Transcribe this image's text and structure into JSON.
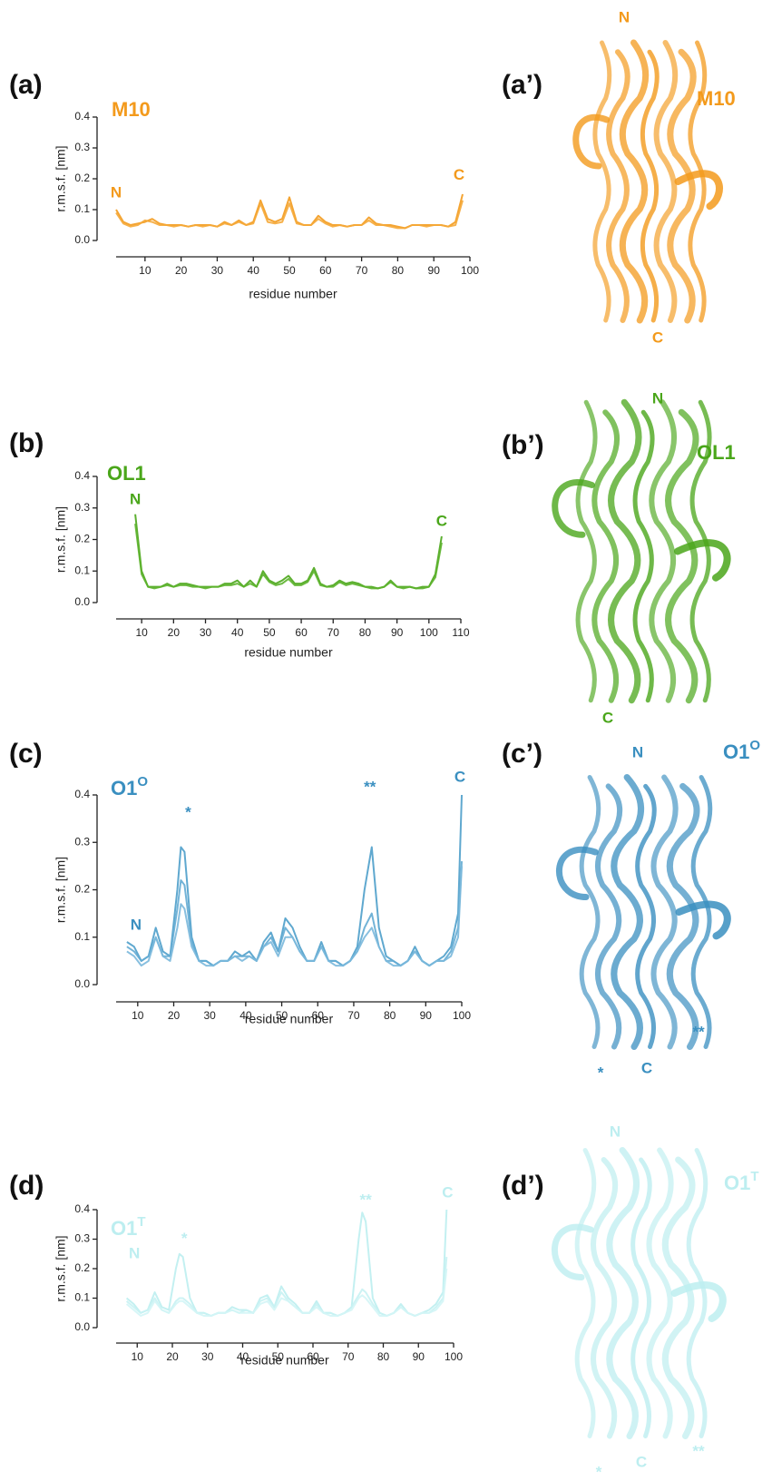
{
  "chart_data": [
    {
      "type": "line",
      "label": "(a)",
      "title": "M10",
      "color": "#f39a1c",
      "xlabel": "residue number",
      "ylabel": "r.m.s.f. [nm]",
      "xlim": [
        2,
        100
      ],
      "ylim": [
        0,
        0.4
      ],
      "xticks": [
        10,
        20,
        30,
        40,
        50,
        60,
        70,
        80,
        90,
        100
      ],
      "yticks": [
        {
          "value": 0,
          "label": "0.0"
        },
        0.1,
        0.2,
        0.3,
        0.4
      ],
      "annotations": [
        {
          "text": "N",
          "x": 2,
          "y": 0.153
        },
        {
          "text": "C",
          "x": 97,
          "y": 0.21
        }
      ],
      "x": [
        2,
        4,
        6,
        8,
        10,
        12,
        14,
        16,
        18,
        20,
        22,
        24,
        26,
        28,
        30,
        32,
        34,
        36,
        38,
        40,
        42,
        44,
        46,
        48,
        50,
        52,
        54,
        56,
        58,
        60,
        62,
        64,
        66,
        68,
        70,
        72,
        74,
        76,
        78,
        80,
        82,
        84,
        86,
        88,
        90,
        92,
        94,
        96,
        98
      ],
      "series": [
        {
          "color": "#f39a1c",
          "values": [
            0.1,
            0.06,
            0.05,
            0.055,
            0.06,
            0.07,
            0.055,
            0.05,
            0.05,
            0.05,
            0.045,
            0.05,
            0.05,
            0.05,
            0.045,
            0.06,
            0.05,
            0.065,
            0.05,
            0.06,
            0.13,
            0.07,
            0.06,
            0.07,
            0.14,
            0.06,
            0.05,
            0.05,
            0.08,
            0.06,
            0.05,
            0.05,
            0.045,
            0.05,
            0.05,
            0.075,
            0.055,
            0.05,
            0.05,
            0.045,
            0.04,
            0.05,
            0.05,
            0.05,
            0.05,
            0.05,
            0.045,
            0.06,
            0.15
          ]
        },
        {
          "color": "#f5a837",
          "values": [
            0.09,
            0.055,
            0.045,
            0.05,
            0.065,
            0.06,
            0.05,
            0.05,
            0.045,
            0.05,
            0.045,
            0.05,
            0.045,
            0.05,
            0.045,
            0.055,
            0.05,
            0.06,
            0.05,
            0.055,
            0.12,
            0.06,
            0.055,
            0.06,
            0.12,
            0.055,
            0.05,
            0.05,
            0.07,
            0.055,
            0.045,
            0.05,
            0.045,
            0.05,
            0.05,
            0.065,
            0.05,
            0.05,
            0.045,
            0.04,
            0.04,
            0.05,
            0.05,
            0.045,
            0.05,
            0.05,
            0.045,
            0.05,
            0.13
          ]
        }
      ]
    },
    {
      "type": "line",
      "label": "(b)",
      "title": "OL1",
      "color": "#4aa61a",
      "xlabel": "residue number",
      "ylabel": "r.m.s.f. [nm]",
      "xlim": [
        2,
        110
      ],
      "ylim": [
        0,
        0.4
      ],
      "xticks": [
        10,
        20,
        30,
        40,
        50,
        60,
        70,
        80,
        90,
        100,
        110
      ],
      "yticks": [
        {
          "value": 0,
          "label": "0.0"
        },
        0.1,
        0.2,
        0.3,
        0.4
      ],
      "annotations": [
        {
          "text": "N",
          "x": 8,
          "y": 0.325
        },
        {
          "text": "C",
          "x": 104,
          "y": 0.256
        }
      ],
      "x": [
        8,
        10,
        12,
        14,
        16,
        18,
        20,
        22,
        24,
        26,
        28,
        30,
        32,
        34,
        36,
        38,
        40,
        42,
        44,
        46,
        48,
        50,
        52,
        54,
        56,
        58,
        60,
        62,
        64,
        66,
        68,
        70,
        72,
        74,
        76,
        78,
        80,
        82,
        84,
        86,
        88,
        90,
        92,
        94,
        96,
        98,
        100,
        102,
        104
      ],
      "series": [
        {
          "color": "#4aa61a",
          "values": [
            0.28,
            0.1,
            0.05,
            0.05,
            0.05,
            0.06,
            0.05,
            0.06,
            0.06,
            0.055,
            0.05,
            0.05,
            0.05,
            0.05,
            0.06,
            0.06,
            0.07,
            0.05,
            0.07,
            0.05,
            0.1,
            0.07,
            0.06,
            0.07,
            0.085,
            0.06,
            0.06,
            0.07,
            0.11,
            0.06,
            0.05,
            0.055,
            0.07,
            0.06,
            0.065,
            0.06,
            0.05,
            0.05,
            0.045,
            0.05,
            0.07,
            0.05,
            0.05,
            0.05,
            0.045,
            0.05,
            0.05,
            0.09,
            0.21
          ]
        },
        {
          "color": "#5cb32c",
          "values": [
            0.25,
            0.09,
            0.05,
            0.045,
            0.05,
            0.055,
            0.05,
            0.055,
            0.055,
            0.05,
            0.05,
            0.045,
            0.05,
            0.05,
            0.055,
            0.055,
            0.06,
            0.05,
            0.06,
            0.05,
            0.09,
            0.065,
            0.055,
            0.06,
            0.075,
            0.055,
            0.055,
            0.065,
            0.1,
            0.055,
            0.05,
            0.05,
            0.065,
            0.055,
            0.06,
            0.055,
            0.05,
            0.045,
            0.045,
            0.05,
            0.065,
            0.05,
            0.045,
            0.05,
            0.045,
            0.045,
            0.05,
            0.08,
            0.19
          ]
        }
      ]
    },
    {
      "type": "line",
      "label": "(c)",
      "title": "O1",
      "title_sup": "O",
      "color": "#3a8fc0",
      "xlabel": "residue number",
      "ylabel": "r.m.s.f. [nm]",
      "xlim": [
        4,
        100
      ],
      "ylim": [
        0,
        0.4
      ],
      "xticks": [
        10,
        20,
        30,
        40,
        50,
        60,
        70,
        80,
        90,
        100
      ],
      "yticks": [
        {
          "value": 0,
          "label": "0.0"
        },
        0.1,
        0.2,
        0.3,
        0.4
      ],
      "annotations": [
        {
          "text": "N",
          "x": 9.5,
          "y": 0.124
        },
        {
          "text": "*",
          "x": 24,
          "y": 0.362
        },
        {
          "text": "**",
          "x": 74.5,
          "y": 0.415
        },
        {
          "text": "C",
          "x": 99.5,
          "y": 0.436
        }
      ],
      "x": [
        7,
        9,
        11,
        13,
        15,
        17,
        19,
        21,
        22,
        23,
        25,
        27,
        29,
        31,
        33,
        35,
        37,
        39,
        41,
        43,
        45,
        47,
        49,
        51,
        53,
        55,
        57,
        59,
        61,
        63,
        65,
        67,
        69,
        71,
        73,
        75,
        77,
        79,
        81,
        83,
        85,
        87,
        89,
        91,
        93,
        95,
        97,
        99,
        100
      ],
      "series": [
        {
          "color": "#4e9fca",
          "values": [
            0.09,
            0.08,
            0.05,
            0.06,
            0.12,
            0.07,
            0.06,
            0.2,
            0.29,
            0.28,
            0.1,
            0.05,
            0.05,
            0.04,
            0.05,
            0.05,
            0.07,
            0.06,
            0.07,
            0.05,
            0.09,
            0.11,
            0.07,
            0.14,
            0.12,
            0.08,
            0.05,
            0.05,
            0.09,
            0.05,
            0.05,
            0.04,
            0.05,
            0.08,
            0.2,
            0.29,
            0.12,
            0.06,
            0.05,
            0.04,
            0.05,
            0.08,
            0.05,
            0.04,
            0.05,
            0.06,
            0.08,
            0.15,
            0.4
          ]
        },
        {
          "color": "#63abd3",
          "values": [
            0.08,
            0.07,
            0.05,
            0.06,
            0.1,
            0.06,
            0.06,
            0.16,
            0.22,
            0.21,
            0.09,
            0.05,
            0.05,
            0.04,
            0.05,
            0.05,
            0.06,
            0.06,
            0.06,
            0.05,
            0.08,
            0.1,
            0.07,
            0.12,
            0.1,
            0.07,
            0.05,
            0.05,
            0.08,
            0.05,
            0.05,
            0.04,
            0.05,
            0.07,
            0.12,
            0.15,
            0.08,
            0.05,
            0.05,
            0.04,
            0.05,
            0.07,
            0.05,
            0.04,
            0.05,
            0.05,
            0.07,
            0.12,
            0.26
          ]
        },
        {
          "color": "#7ab8dc",
          "values": [
            0.07,
            0.06,
            0.04,
            0.05,
            0.1,
            0.06,
            0.05,
            0.12,
            0.17,
            0.16,
            0.08,
            0.05,
            0.04,
            0.04,
            0.05,
            0.05,
            0.06,
            0.05,
            0.06,
            0.05,
            0.08,
            0.09,
            0.06,
            0.1,
            0.1,
            0.07,
            0.05,
            0.05,
            0.08,
            0.05,
            0.04,
            0.04,
            0.05,
            0.07,
            0.1,
            0.12,
            0.08,
            0.05,
            0.04,
            0.04,
            0.05,
            0.07,
            0.05,
            0.04,
            0.05,
            0.05,
            0.06,
            0.1,
            0.25
          ]
        }
      ]
    },
    {
      "type": "line",
      "label": "(d)",
      "title": "O1",
      "title_sup": "T",
      "color": "#bdeef0",
      "xlabel": "residue number",
      "ylabel": "r.m.s.f. [nm]",
      "xlim": [
        4,
        100
      ],
      "ylim": [
        0,
        0.4
      ],
      "xticks": [
        10,
        20,
        30,
        40,
        50,
        60,
        70,
        80,
        90,
        100
      ],
      "yticks": [
        {
          "value": 0,
          "label": "0.0"
        },
        0.1,
        0.2,
        0.3,
        0.4
      ],
      "annotations": [
        {
          "text": "N",
          "x": 9.2,
          "y": 0.249
        },
        {
          "text": "*",
          "x": 23.4,
          "y": 0.3
        },
        {
          "text": "**",
          "x": 75,
          "y": 0.43
        },
        {
          "text": "C",
          "x": 98.3,
          "y": 0.455
        }
      ],
      "x": [
        7,
        9,
        11,
        13,
        15,
        17,
        19,
        21,
        22,
        23,
        25,
        27,
        29,
        31,
        33,
        35,
        37,
        39,
        41,
        43,
        45,
        47,
        49,
        51,
        53,
        55,
        57,
        59,
        61,
        63,
        65,
        67,
        69,
        71,
        73,
        74,
        75,
        77,
        79,
        81,
        83,
        85,
        87,
        89,
        91,
        93,
        95,
        97,
        98
      ],
      "series": [
        {
          "color": "#bdeef0",
          "values": [
            0.1,
            0.08,
            0.05,
            0.06,
            0.12,
            0.07,
            0.06,
            0.2,
            0.25,
            0.24,
            0.1,
            0.05,
            0.05,
            0.04,
            0.05,
            0.05,
            0.07,
            0.06,
            0.06,
            0.05,
            0.1,
            0.11,
            0.07,
            0.14,
            0.1,
            0.08,
            0.05,
            0.05,
            0.09,
            0.05,
            0.05,
            0.04,
            0.05,
            0.07,
            0.3,
            0.39,
            0.36,
            0.1,
            0.05,
            0.04,
            0.05,
            0.08,
            0.05,
            0.04,
            0.05,
            0.06,
            0.08,
            0.12,
            0.4
          ]
        },
        {
          "color": "#c8f2f3",
          "values": [
            0.09,
            0.07,
            0.05,
            0.06,
            0.1,
            0.06,
            0.05,
            0.09,
            0.1,
            0.1,
            0.08,
            0.05,
            0.05,
            0.04,
            0.05,
            0.05,
            0.06,
            0.05,
            0.06,
            0.05,
            0.09,
            0.1,
            0.07,
            0.12,
            0.09,
            0.07,
            0.05,
            0.05,
            0.08,
            0.05,
            0.05,
            0.04,
            0.05,
            0.07,
            0.11,
            0.13,
            0.12,
            0.08,
            0.05,
            0.04,
            0.05,
            0.07,
            0.05,
            0.04,
            0.05,
            0.05,
            0.07,
            0.1,
            0.24
          ]
        },
        {
          "color": "#d3f5f6",
          "values": [
            0.08,
            0.06,
            0.04,
            0.05,
            0.09,
            0.06,
            0.05,
            0.08,
            0.09,
            0.09,
            0.07,
            0.05,
            0.04,
            0.04,
            0.05,
            0.05,
            0.06,
            0.05,
            0.05,
            0.05,
            0.08,
            0.09,
            0.06,
            0.1,
            0.09,
            0.07,
            0.05,
            0.05,
            0.07,
            0.05,
            0.04,
            0.04,
            0.05,
            0.06,
            0.1,
            0.11,
            0.1,
            0.07,
            0.04,
            0.04,
            0.05,
            0.07,
            0.05,
            0.04,
            0.05,
            0.05,
            0.06,
            0.09,
            0.2
          ]
        }
      ]
    }
  ],
  "structures": [
    {
      "label": "(a’)",
      "title": "M10",
      "color": "#f39a1c",
      "annotations": [
        "N",
        "C"
      ]
    },
    {
      "label": "(b’)",
      "title": "OL1",
      "color": "#4aa61a",
      "annotations": [
        "N",
        "C"
      ]
    },
    {
      "label": "(c’)",
      "title": "O1",
      "title_sup": "O",
      "color": "#3a8fc0",
      "annotations": [
        "N",
        "C",
        "*",
        "**"
      ]
    },
    {
      "label": "(d’)",
      "title": "O1",
      "title_sup": "T",
      "color": "#bdeef0",
      "annotations": [
        "N",
        "C",
        "*",
        "**"
      ]
    }
  ]
}
